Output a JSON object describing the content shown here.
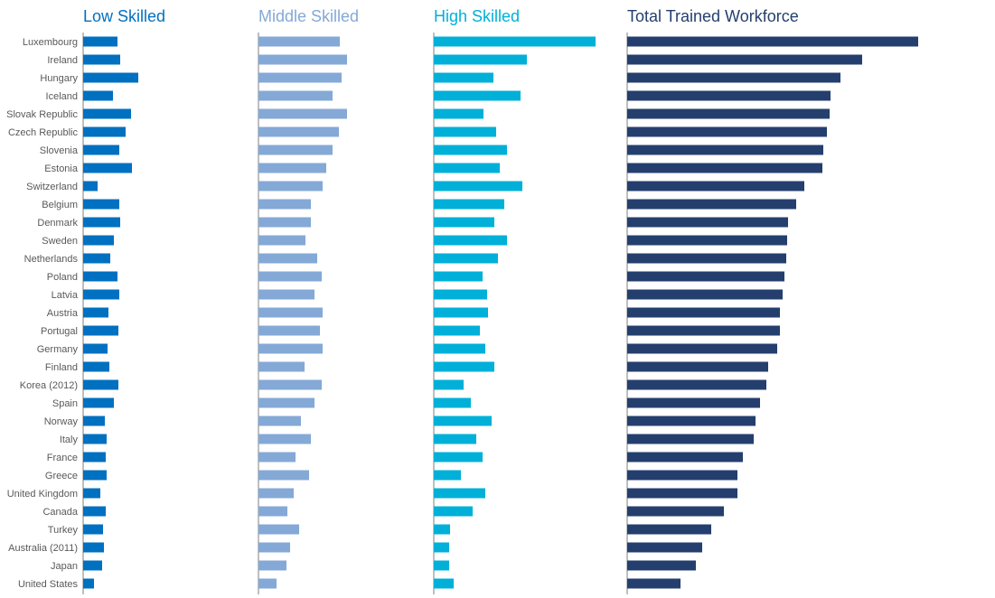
{
  "chart_data": {
    "type": "bar",
    "orientation": "horizontal",
    "categories": [
      "Luxembourg",
      "Ireland",
      "Hungary",
      "Iceland",
      "Slovak Republic",
      "Czech Republic",
      "Slovenia",
      "Estonia",
      "Switzerland",
      "Belgium",
      "Denmark",
      "Sweden",
      "Netherlands",
      "Poland",
      "Latvia",
      "Austria",
      "Portugal",
      "Germany",
      "Finland",
      "Korea (2012)",
      "Spain",
      "Norway",
      "Italy",
      "France",
      "Greece",
      "United Kingdom",
      "Canada",
      "Turkey",
      "Australia (2011)",
      "Japan",
      "United States"
    ],
    "series": [
      {
        "name": "Low Skilled",
        "color": "#0070C0",
        "values": [
          38,
          41,
          61,
          33,
          53,
          47,
          40,
          54,
          16,
          40,
          41,
          34,
          30,
          38,
          40,
          28,
          39,
          27,
          29,
          39,
          34,
          24,
          26,
          25,
          26,
          19,
          25,
          22,
          23,
          21,
          12
        ]
      },
      {
        "name": "Middle Skilled",
        "color": "#84A9D7",
        "values": [
          90,
          98,
          92,
          82,
          98,
          89,
          82,
          75,
          71,
          58,
          58,
          52,
          65,
          70,
          62,
          71,
          68,
          71,
          51,
          70,
          62,
          47,
          58,
          41,
          56,
          39,
          32,
          45,
          35,
          31,
          20
        ]
      },
      {
        "name": "High Skilled",
        "color": "#00B0D8",
        "values": [
          179,
          103,
          66,
          96,
          55,
          69,
          81,
          73,
          98,
          78,
          67,
          81,
          71,
          54,
          59,
          60,
          51,
          57,
          67,
          33,
          41,
          64,
          47,
          54,
          30,
          57,
          43,
          18,
          17,
          17,
          22
        ]
      },
      {
        "name": "Total Trained Workforce",
        "color": "#243F6E",
        "values": [
          322,
          260,
          236,
          225,
          224,
          221,
          217,
          216,
          196,
          187,
          178,
          177,
          176,
          174,
          172,
          169,
          169,
          166,
          156,
          154,
          147,
          142,
          140,
          128,
          122,
          122,
          107,
          93,
          83,
          76,
          59
        ]
      }
    ],
    "xlim": [
      0,
      330
    ],
    "grid": false,
    "legend": "none"
  }
}
